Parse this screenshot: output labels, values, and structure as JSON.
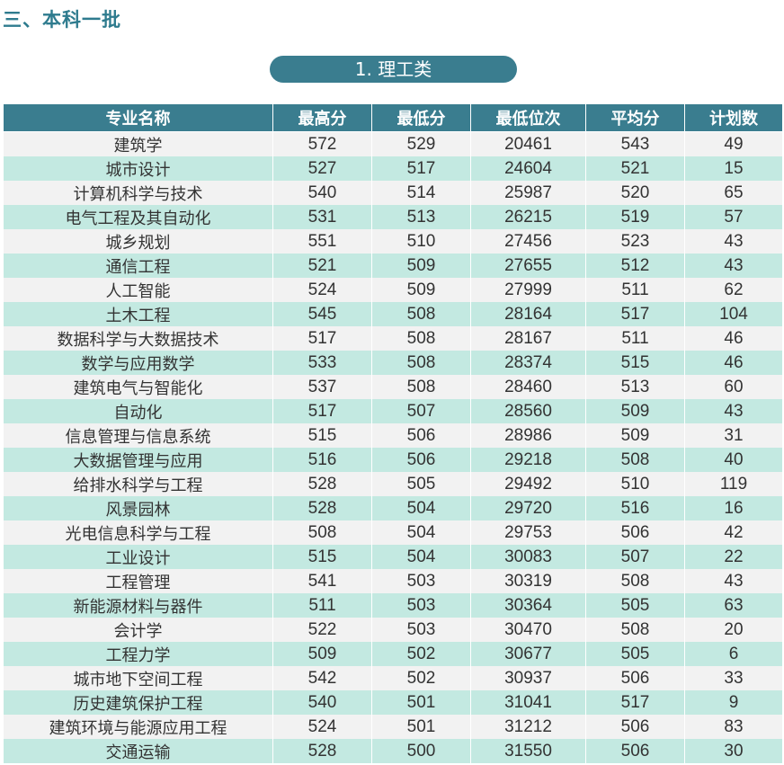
{
  "section_title": "三、本科一批",
  "category_label": "1. 理工类",
  "table": {
    "headers": [
      "专业名称",
      "最高分",
      "最低分",
      "最低位次",
      "平均分",
      "计划数"
    ],
    "rows": [
      [
        "建筑学",
        "572",
        "529",
        "20461",
        "543",
        "49"
      ],
      [
        "城市设计",
        "527",
        "517",
        "24604",
        "521",
        "15"
      ],
      [
        "计算机科学与技术",
        "540",
        "514",
        "25987",
        "520",
        "65"
      ],
      [
        "电气工程及其自动化",
        "531",
        "513",
        "26215",
        "519",
        "57"
      ],
      [
        "城乡规划",
        "551",
        "510",
        "27456",
        "523",
        "43"
      ],
      [
        "通信工程",
        "521",
        "509",
        "27655",
        "512",
        "43"
      ],
      [
        "人工智能",
        "524",
        "509",
        "27999",
        "511",
        "62"
      ],
      [
        "土木工程",
        "545",
        "508",
        "28164",
        "517",
        "104"
      ],
      [
        "数据科学与大数据技术",
        "517",
        "508",
        "28167",
        "511",
        "46"
      ],
      [
        "数学与应用数学",
        "533",
        "508",
        "28374",
        "515",
        "46"
      ],
      [
        "建筑电气与智能化",
        "537",
        "508",
        "28460",
        "513",
        "60"
      ],
      [
        "自动化",
        "517",
        "507",
        "28560",
        "509",
        "43"
      ],
      [
        "信息管理与信息系统",
        "515",
        "506",
        "28986",
        "509",
        "31"
      ],
      [
        "大数据管理与应用",
        "516",
        "506",
        "29218",
        "508",
        "40"
      ],
      [
        "给排水科学与工程",
        "528",
        "505",
        "29492",
        "510",
        "119"
      ],
      [
        "风景园林",
        "528",
        "504",
        "29720",
        "516",
        "16"
      ],
      [
        "光电信息科学与工程",
        "508",
        "504",
        "29753",
        "506",
        "42"
      ],
      [
        "工业设计",
        "515",
        "504",
        "30083",
        "507",
        "22"
      ],
      [
        "工程管理",
        "541",
        "503",
        "30319",
        "508",
        "43"
      ],
      [
        "新能源材料与器件",
        "511",
        "503",
        "30364",
        "505",
        "63"
      ],
      [
        "会计学",
        "522",
        "503",
        "30470",
        "508",
        "20"
      ],
      [
        "工程力学",
        "509",
        "502",
        "30677",
        "505",
        "6"
      ],
      [
        "城市地下空间工程",
        "542",
        "502",
        "30937",
        "506",
        "33"
      ],
      [
        "历史建筑保护工程",
        "540",
        "501",
        "31041",
        "517",
        "9"
      ],
      [
        "建筑环境与能源应用工程",
        "524",
        "501",
        "31212",
        "506",
        "83"
      ],
      [
        "交通运输",
        "528",
        "500",
        "31550",
        "506",
        "30"
      ]
    ]
  },
  "colors": {
    "title_teal": "#2e7b8e",
    "header_teal": "#3a7d8f",
    "row_light": "#f2f2f2",
    "row_mint": "#c3e9e1"
  }
}
